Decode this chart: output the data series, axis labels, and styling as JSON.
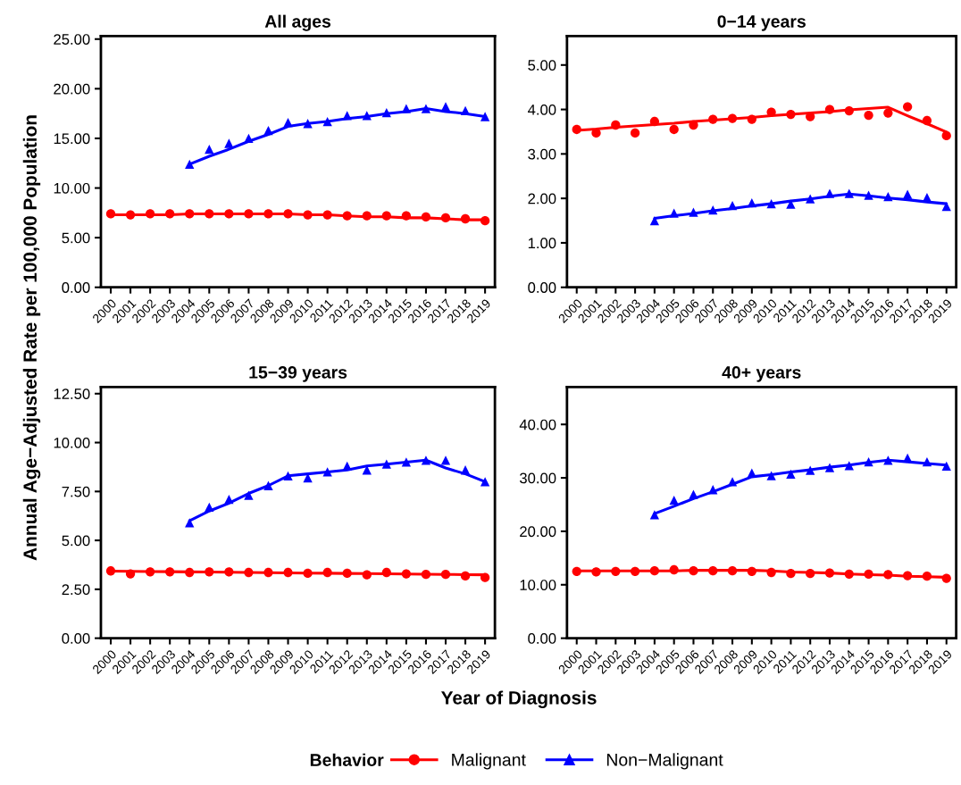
{
  "chart_data": [
    {
      "type": "line",
      "title": "All ages",
      "ylabel": "Annual Age−Adjusted Rate per 100,000 Population",
      "xlabel": "Year of Diagnosis",
      "legend_title": "Behavior",
      "legend": "bottom",
      "grid": false,
      "categories": [
        "2000",
        "2001",
        "2002",
        "2003",
        "2004",
        "2005",
        "2006",
        "2007",
        "2008",
        "2009",
        "2010",
        "2011",
        "2012",
        "2013",
        "2014",
        "2015",
        "2016",
        "2017",
        "2018",
        "2019"
      ],
      "ylim": [
        0,
        25.3
      ],
      "yticks": [
        {
          "value": 0,
          "label": "0.00"
        },
        {
          "value": 5,
          "label": "5.00"
        },
        {
          "value": 10,
          "label": "10.00"
        },
        {
          "value": 15,
          "label": "15.00"
        },
        {
          "value": 20,
          "label": "20.00"
        },
        {
          "value": 25,
          "label": "25.00"
        }
      ],
      "series": [
        {
          "type": "line",
          "color": "#ff0000",
          "values": [
            7.3,
            7.3,
            7.3,
            7.3,
            7.4,
            7.4,
            7.4,
            7.4,
            7.4,
            7.4,
            7.3,
            7.3,
            7.2,
            7.1,
            7.1,
            7.0,
            7.0,
            6.9,
            6.8,
            6.8
          ]
        },
        {
          "type": "line",
          "color": "#0000ff",
          "values": [
            null,
            null,
            null,
            null,
            12.4,
            13.2,
            13.9,
            14.7,
            15.4,
            16.2,
            16.5,
            16.7,
            17.0,
            17.2,
            17.5,
            17.7,
            18.0,
            17.7,
            17.5,
            17.2
          ]
        },
        {
          "type": "scatter",
          "name": "Malignant",
          "color": "#ff0000",
          "marker": "circle",
          "values": [
            7.4,
            7.3,
            7.4,
            7.4,
            7.4,
            7.4,
            7.4,
            7.4,
            7.4,
            7.4,
            7.3,
            7.3,
            7.2,
            7.2,
            7.2,
            7.2,
            7.1,
            7.0,
            6.9,
            6.7
          ]
        },
        {
          "type": "scatter",
          "name": "Non−Malignant",
          "color": "#0000ff",
          "marker": "triangle",
          "values": [
            null,
            null,
            null,
            null,
            12.4,
            13.9,
            14.5,
            15.0,
            15.8,
            16.6,
            16.5,
            16.7,
            17.3,
            17.3,
            17.6,
            18.0,
            18.0,
            18.2,
            17.8,
            17.2
          ]
        }
      ]
    },
    {
      "type": "line",
      "title": "0−14 years",
      "grid": false,
      "categories": [
        "2000",
        "2001",
        "2002",
        "2003",
        "2004",
        "2005",
        "2006",
        "2007",
        "2008",
        "2009",
        "2010",
        "2011",
        "2012",
        "2013",
        "2014",
        "2015",
        "2016",
        "2017",
        "2018",
        "2019"
      ],
      "ylim": [
        0,
        5.65
      ],
      "yticks": [
        {
          "value": 0,
          "label": "0.00"
        },
        {
          "value": 1,
          "label": "1.00"
        },
        {
          "value": 2,
          "label": "2.00"
        },
        {
          "value": 3,
          "label": "3.00"
        },
        {
          "value": 4,
          "label": "4.00"
        },
        {
          "value": 5,
          "label": "5.00"
        }
      ],
      "series": [
        {
          "type": "line",
          "color": "#ff0000",
          "values": [
            3.53,
            3.56,
            3.6,
            3.63,
            3.66,
            3.69,
            3.73,
            3.76,
            3.79,
            3.82,
            3.86,
            3.89,
            3.92,
            3.95,
            3.99,
            4.02,
            4.05,
            3.86,
            3.68,
            3.49
          ]
        },
        {
          "type": "line",
          "color": "#0000ff",
          "values": [
            null,
            null,
            null,
            null,
            1.55,
            1.61,
            1.66,
            1.72,
            1.77,
            1.83,
            1.88,
            1.94,
            1.99,
            2.05,
            2.1,
            2.06,
            2.01,
            1.97,
            1.92,
            1.88
          ]
        },
        {
          "type": "scatter",
          "color": "#ff0000",
          "marker": "circle",
          "values": [
            3.55,
            3.47,
            3.65,
            3.47,
            3.73,
            3.55,
            3.65,
            3.78,
            3.8,
            3.78,
            3.94,
            3.89,
            3.84,
            4.0,
            3.97,
            3.87,
            3.92,
            4.06,
            3.75,
            3.41
          ]
        },
        {
          "type": "scatter",
          "color": "#0000ff",
          "marker": "triangle",
          "values": [
            null,
            null,
            null,
            null,
            1.5,
            1.67,
            1.69,
            1.74,
            1.84,
            1.9,
            1.88,
            1.87,
            1.99,
            2.11,
            2.11,
            2.07,
            2.04,
            2.09,
            2.02,
            1.82
          ]
        }
      ]
    },
    {
      "type": "line",
      "title": "15−39 years",
      "grid": false,
      "categories": [
        "2000",
        "2001",
        "2002",
        "2003",
        "2004",
        "2005",
        "2006",
        "2007",
        "2008",
        "2009",
        "2010",
        "2011",
        "2012",
        "2013",
        "2014",
        "2015",
        "2016",
        "2017",
        "2018",
        "2019"
      ],
      "ylim": [
        0,
        12.84
      ],
      "yticks": [
        {
          "value": 0,
          "label": "0.00"
        },
        {
          "value": 2.5,
          "label": "2.50"
        },
        {
          "value": 5,
          "label": "5.00"
        },
        {
          "value": 7.5,
          "label": "7.50"
        },
        {
          "value": 10,
          "label": "10.00"
        },
        {
          "value": 12.5,
          "label": "12.50"
        }
      ],
      "series": [
        {
          "type": "line",
          "color": "#ff0000",
          "values": [
            3.43,
            3.42,
            3.41,
            3.4,
            3.39,
            3.38,
            3.37,
            3.36,
            3.35,
            3.34,
            3.33,
            3.32,
            3.31,
            3.3,
            3.29,
            3.28,
            3.27,
            3.26,
            3.25,
            3.24
          ]
        },
        {
          "type": "line",
          "color": "#0000ff",
          "values": [
            null,
            null,
            null,
            null,
            6.0,
            6.5,
            6.9,
            7.4,
            7.8,
            8.3,
            8.4,
            8.5,
            8.6,
            8.8,
            8.9,
            9.0,
            9.1,
            8.7,
            8.4,
            8.0
          ]
        },
        {
          "type": "scatter",
          "color": "#ff0000",
          "marker": "circle",
          "values": [
            3.44,
            3.29,
            3.39,
            3.39,
            3.36,
            3.39,
            3.39,
            3.36,
            3.36,
            3.36,
            3.32,
            3.36,
            3.32,
            3.24,
            3.36,
            3.29,
            3.26,
            3.26,
            3.18,
            3.1
          ]
        },
        {
          "type": "scatter",
          "color": "#0000ff",
          "marker": "triangle",
          "values": [
            null,
            null,
            null,
            null,
            5.9,
            6.7,
            7.1,
            7.3,
            7.8,
            8.3,
            8.2,
            8.5,
            8.8,
            8.6,
            8.9,
            9.0,
            9.1,
            9.1,
            8.6,
            8.0
          ]
        }
      ]
    },
    {
      "type": "line",
      "title": "40+ years",
      "grid": false,
      "categories": [
        "2000",
        "2001",
        "2002",
        "2003",
        "2004",
        "2005",
        "2006",
        "2007",
        "2008",
        "2009",
        "2010",
        "2011",
        "2012",
        "2013",
        "2014",
        "2015",
        "2016",
        "2017",
        "2018",
        "2019"
      ],
      "ylim": [
        0,
        47
      ],
      "yticks": [
        {
          "value": 0,
          "label": "0.00"
        },
        {
          "value": 10,
          "label": "10.00"
        },
        {
          "value": 20,
          "label": "20.00"
        },
        {
          "value": 30,
          "label": "30.00"
        },
        {
          "value": 40,
          "label": "40.00"
        }
      ],
      "series": [
        {
          "type": "line",
          "color": "#ff0000",
          "values": [
            12.6,
            12.6,
            12.6,
            12.6,
            12.6,
            12.6,
            12.7,
            12.7,
            12.7,
            12.7,
            12.6,
            12.4,
            12.3,
            12.2,
            12.0,
            11.9,
            11.8,
            11.6,
            11.5,
            11.4
          ]
        },
        {
          "type": "line",
          "color": "#0000ff",
          "values": [
            null,
            null,
            null,
            null,
            23.3,
            24.7,
            26.1,
            27.4,
            28.8,
            30.2,
            30.6,
            31.1,
            31.5,
            32.0,
            32.4,
            32.9,
            33.3,
            33.0,
            32.7,
            32.4
          ]
        },
        {
          "type": "scatter",
          "color": "#ff0000",
          "marker": "circle",
          "values": [
            12.5,
            12.4,
            12.5,
            12.5,
            12.6,
            12.8,
            12.6,
            12.6,
            12.6,
            12.5,
            12.3,
            12.1,
            12.1,
            12.2,
            12.0,
            12.0,
            11.9,
            11.7,
            11.6,
            11.2
          ]
        },
        {
          "type": "scatter",
          "color": "#0000ff",
          "marker": "triangle",
          "values": [
            null,
            null,
            null,
            null,
            23.1,
            25.8,
            26.9,
            27.8,
            29.3,
            30.9,
            30.4,
            30.7,
            31.4,
            31.9,
            32.3,
            33.0,
            33.3,
            33.7,
            33.0,
            32.2
          ]
        }
      ]
    }
  ]
}
